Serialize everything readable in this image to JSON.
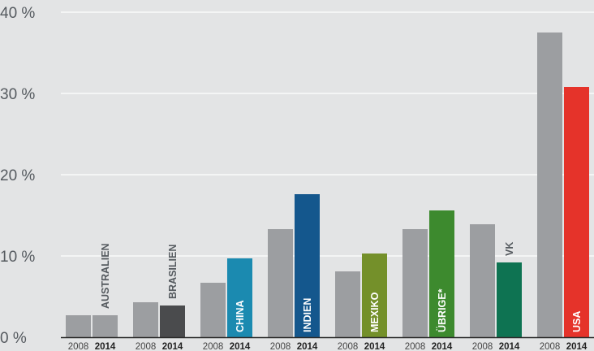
{
  "chart_data": {
    "type": "bar",
    "categories": [
      "AUSTRALIEN",
      "BRASILIEN",
      "CHINA",
      "INDIEN",
      "MEXIKO",
      "ÜBRIGE*",
      "VK",
      "USA"
    ],
    "x_sublabels": [
      "2008",
      "2014"
    ],
    "series": [
      {
        "name": "2008",
        "values": [
          2.7,
          4.3,
          6.7,
          13.3,
          8.1,
          13.3,
          13.9,
          37.5
        ]
      },
      {
        "name": "2014",
        "values": [
          2.7,
          3.9,
          9.7,
          17.6,
          10.3,
          15.6,
          9.2,
          30.8
        ]
      }
    ],
    "ylim": [
      0,
      40
    ],
    "yticks": [
      0,
      10,
      20,
      30,
      40
    ],
    "ytick_labels": [
      "0 %",
      "10 %",
      "20 %",
      "30 %",
      "40 %"
    ],
    "grid": true,
    "colors": {
      "series_2008": "#9c9ea1",
      "categories_2014": [
        "#9c9ea1",
        "#4a4b4d",
        "#1b8ab0",
        "#14578d",
        "#74902a",
        "#3d8a2e",
        "#0e7352",
        "#e5332a"
      ],
      "background": "#e3e4e5",
      "grid": "#ffffff"
    }
  }
}
